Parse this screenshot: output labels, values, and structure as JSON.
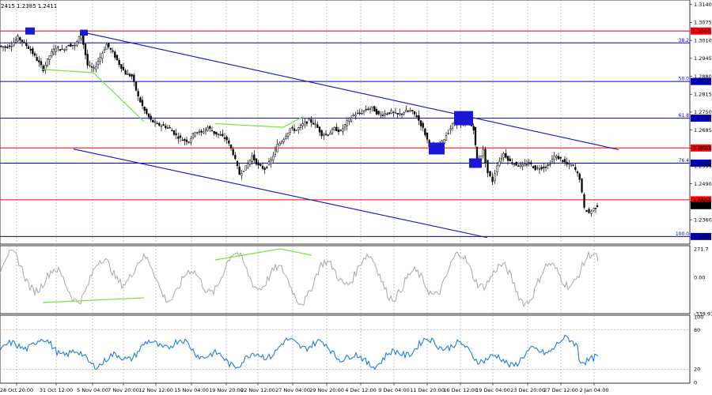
{
  "header": {
    "ohlc_text": "2415 1.2385 1.2411"
  },
  "chart_data": {
    "type": "candlestick",
    "symbol_pair_quote_prefix": "2415",
    "ohlc": {
      "high": "1.2385",
      "last": "1.2411"
    },
    "y_range": [
      1.228,
      1.3145
    ],
    "y_ticks": [
      "1.3140",
      "1.3075",
      "1.3010",
      "1.2945",
      "1.2880",
      "1.2815",
      "1.2750",
      "1.2685",
      "1.2620",
      "1.2555",
      "1.2490",
      "1.2425",
      "1.2360",
      "1.2295"
    ],
    "x_ticks": [
      "28 Oct 20:00",
      "31 Oct 12:00",
      "5 Nov 04:00",
      "7 Nov 20:00",
      "12 Nov 12:00",
      "15 Nov 04:00",
      "19 Nov 20:00",
      "22 Nov 12:00",
      "27 Nov 04:00",
      "29 Nov 20:00",
      "4 Dec 12:00",
      "9 Dec 04:00",
      "11 Dec 20:00",
      "16 Dec 12:00",
      "19 Dec 04:00",
      "23 Dec 20:00",
      "27 Dec 12:00",
      "2 Jan 04:00"
    ],
    "price_path": [
      [
        0,
        1.299
      ],
      [
        8,
        1.2985
      ],
      [
        16,
        1.2995
      ],
      [
        24,
        1.302
      ],
      [
        32,
        1.3
      ],
      [
        40,
        1.2975
      ],
      [
        48,
        1.294
      ],
      [
        56,
        1.2905
      ],
      [
        64,
        1.2955
      ],
      [
        72,
        1.2985
      ],
      [
        80,
        1.2975
      ],
      [
        88,
        1.2995
      ],
      [
        96,
        1.299
      ],
      [
        104,
        1.3035
      ],
      [
        112,
        1.292
      ],
      [
        120,
        1.2905
      ],
      [
        128,
        1.295
      ],
      [
        136,
        1.2995
      ],
      [
        144,
        1.2965
      ],
      [
        152,
        1.2925
      ],
      [
        160,
        1.289
      ],
      [
        168,
        1.288
      ],
      [
        176,
        1.2805
      ],
      [
        184,
        1.2755
      ],
      [
        192,
        1.272
      ],
      [
        200,
        1.2705
      ],
      [
        208,
        1.27
      ],
      [
        216,
        1.269
      ],
      [
        224,
        1.2665
      ],
      [
        232,
        1.265
      ],
      [
        240,
        1.2645
      ],
      [
        248,
        1.268
      ],
      [
        256,
        1.2675
      ],
      [
        264,
        1.2695
      ],
      [
        272,
        1.2675
      ],
      [
        280,
        1.2665
      ],
      [
        288,
        1.265
      ],
      [
        296,
        1.26
      ],
      [
        304,
        1.2525
      ],
      [
        312,
        1.255
      ],
      [
        320,
        1.259
      ],
      [
        328,
        1.2555
      ],
      [
        336,
        1.2545
      ],
      [
        344,
        1.2575
      ],
      [
        352,
        1.263
      ],
      [
        360,
        1.2655
      ],
      [
        368,
        1.269
      ],
      [
        376,
        1.2685
      ],
      [
        384,
        1.2705
      ],
      [
        392,
        1.272
      ],
      [
        400,
        1.2705
      ],
      [
        408,
        1.267
      ],
      [
        416,
        1.267
      ],
      [
        424,
        1.269
      ],
      [
        432,
        1.268
      ],
      [
        440,
        1.2715
      ],
      [
        448,
        1.274
      ],
      [
        456,
        1.2745
      ],
      [
        464,
        1.276
      ],
      [
        472,
        1.2765
      ],
      [
        480,
        1.274
      ],
      [
        488,
        1.2745
      ],
      [
        496,
        1.275
      ],
      [
        504,
        1.274
      ],
      [
        512,
        1.275
      ],
      [
        520,
        1.2755
      ],
      [
        528,
        1.2735
      ],
      [
        536,
        1.269
      ],
      [
        544,
        1.263
      ],
      [
        552,
        1.2615
      ],
      [
        560,
        1.264
      ],
      [
        568,
        1.268
      ],
      [
        576,
        1.2715
      ],
      [
        584,
        1.2705
      ],
      [
        592,
        1.272
      ],
      [
        600,
        1.269
      ],
      [
        604,
        1.2565
      ],
      [
        612,
        1.261
      ],
      [
        618,
        1.253
      ],
      [
        624,
        1.25
      ],
      [
        630,
        1.256
      ],
      [
        638,
        1.26
      ],
      [
        646,
        1.257
      ],
      [
        654,
        1.256
      ],
      [
        662,
        1.2555
      ],
      [
        670,
        1.2565
      ],
      [
        678,
        1.2545
      ],
      [
        686,
        1.255
      ],
      [
        694,
        1.2555
      ],
      [
        702,
        1.259
      ],
      [
        710,
        1.258
      ],
      [
        718,
        1.256
      ],
      [
        726,
        1.2555
      ],
      [
        734,
        1.251
      ],
      [
        740,
        1.24
      ],
      [
        746,
        1.2385
      ],
      [
        752,
        1.24
      ],
      [
        756,
        1.2411
      ]
    ],
    "levels": [
      {
        "price": 1.3044,
        "label": "1.3044",
        "color": "#ff0000",
        "fib": ""
      },
      {
        "price": 1.3001,
        "label": "",
        "color": "#0000cc",
        "fib": "38.2"
      },
      {
        "price": 1.2861,
        "label": "1.2861",
        "color": "#0000cc",
        "fib": "50.0"
      },
      {
        "price": 1.2728,
        "label": "1.2728",
        "color": "#0000cc",
        "fib": "61.8"
      },
      {
        "price": 1.262,
        "label": "1.2620",
        "color": "#ff0000",
        "fib": ""
      },
      {
        "price": 1.2565,
        "label": "1.2565",
        "color": "#0000cc",
        "fib": "76.4"
      },
      {
        "price": 1.2432,
        "label": "1.2432",
        "color": "#ff0000",
        "fib": ""
      },
      {
        "price": 1.2299,
        "label": "1.2299",
        "color": "#0000cc",
        "fib": "100.0"
      }
    ],
    "current_price_label": "1.2411",
    "cci": {
      "y_ticks": [
        "271.7",
        "0.00",
        "-339.978"
      ]
    },
    "rsi": {
      "y_ticks": [
        "100",
        "80",
        "20",
        "0"
      ]
    }
  },
  "colors": {
    "level_blue": "#0000cc",
    "level_red": "#ff0000",
    "channel": "#1010c8",
    "divergence": "#7ee03a",
    "marker": "#1a1ad6",
    "cci_line": "#a8a8a8",
    "rsi_line": "#1e7fd6"
  }
}
